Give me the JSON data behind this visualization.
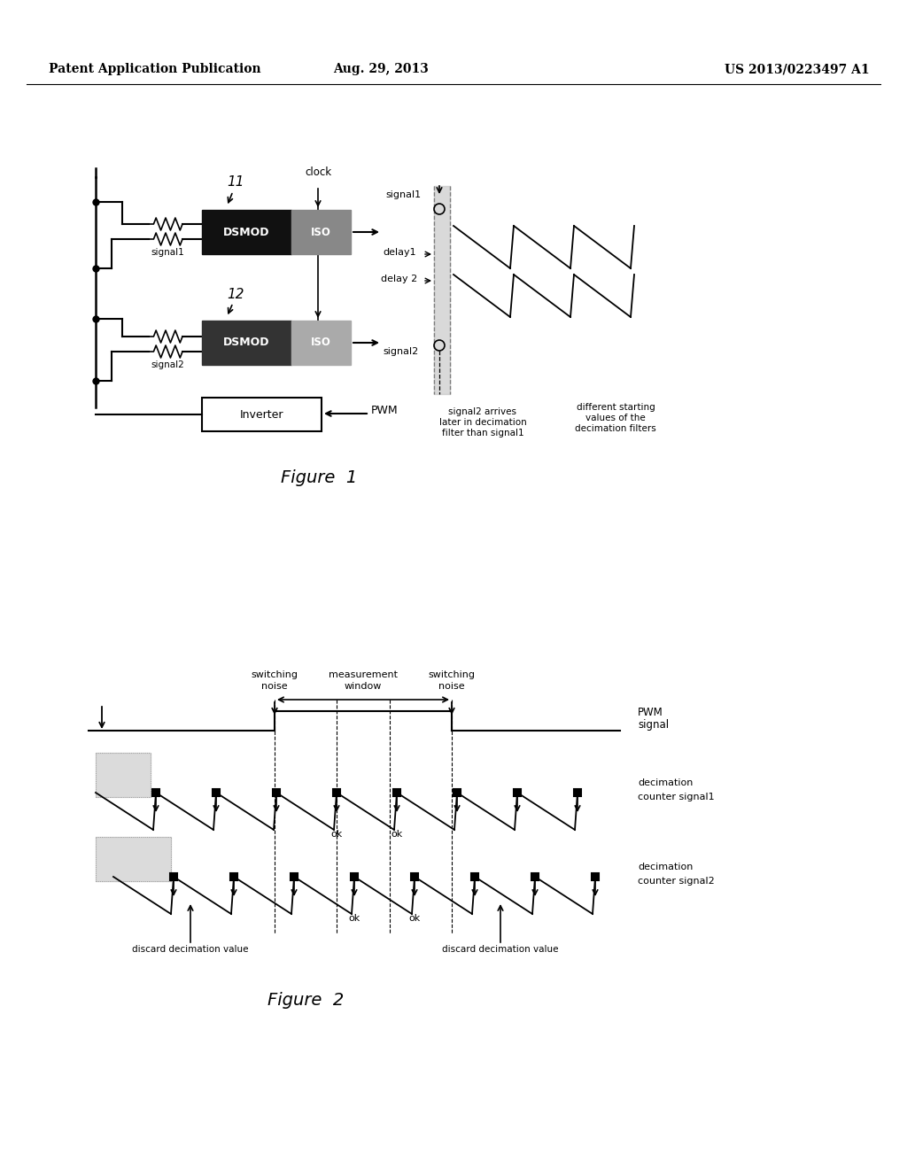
{
  "bg_color": "#ffffff",
  "header_left": "Patent Application Publication",
  "header_center": "Aug. 29, 2013",
  "header_right": "US 2013/0223497 A1",
  "fig1_caption": "Figure  1",
  "fig2_caption": "Figure  2"
}
